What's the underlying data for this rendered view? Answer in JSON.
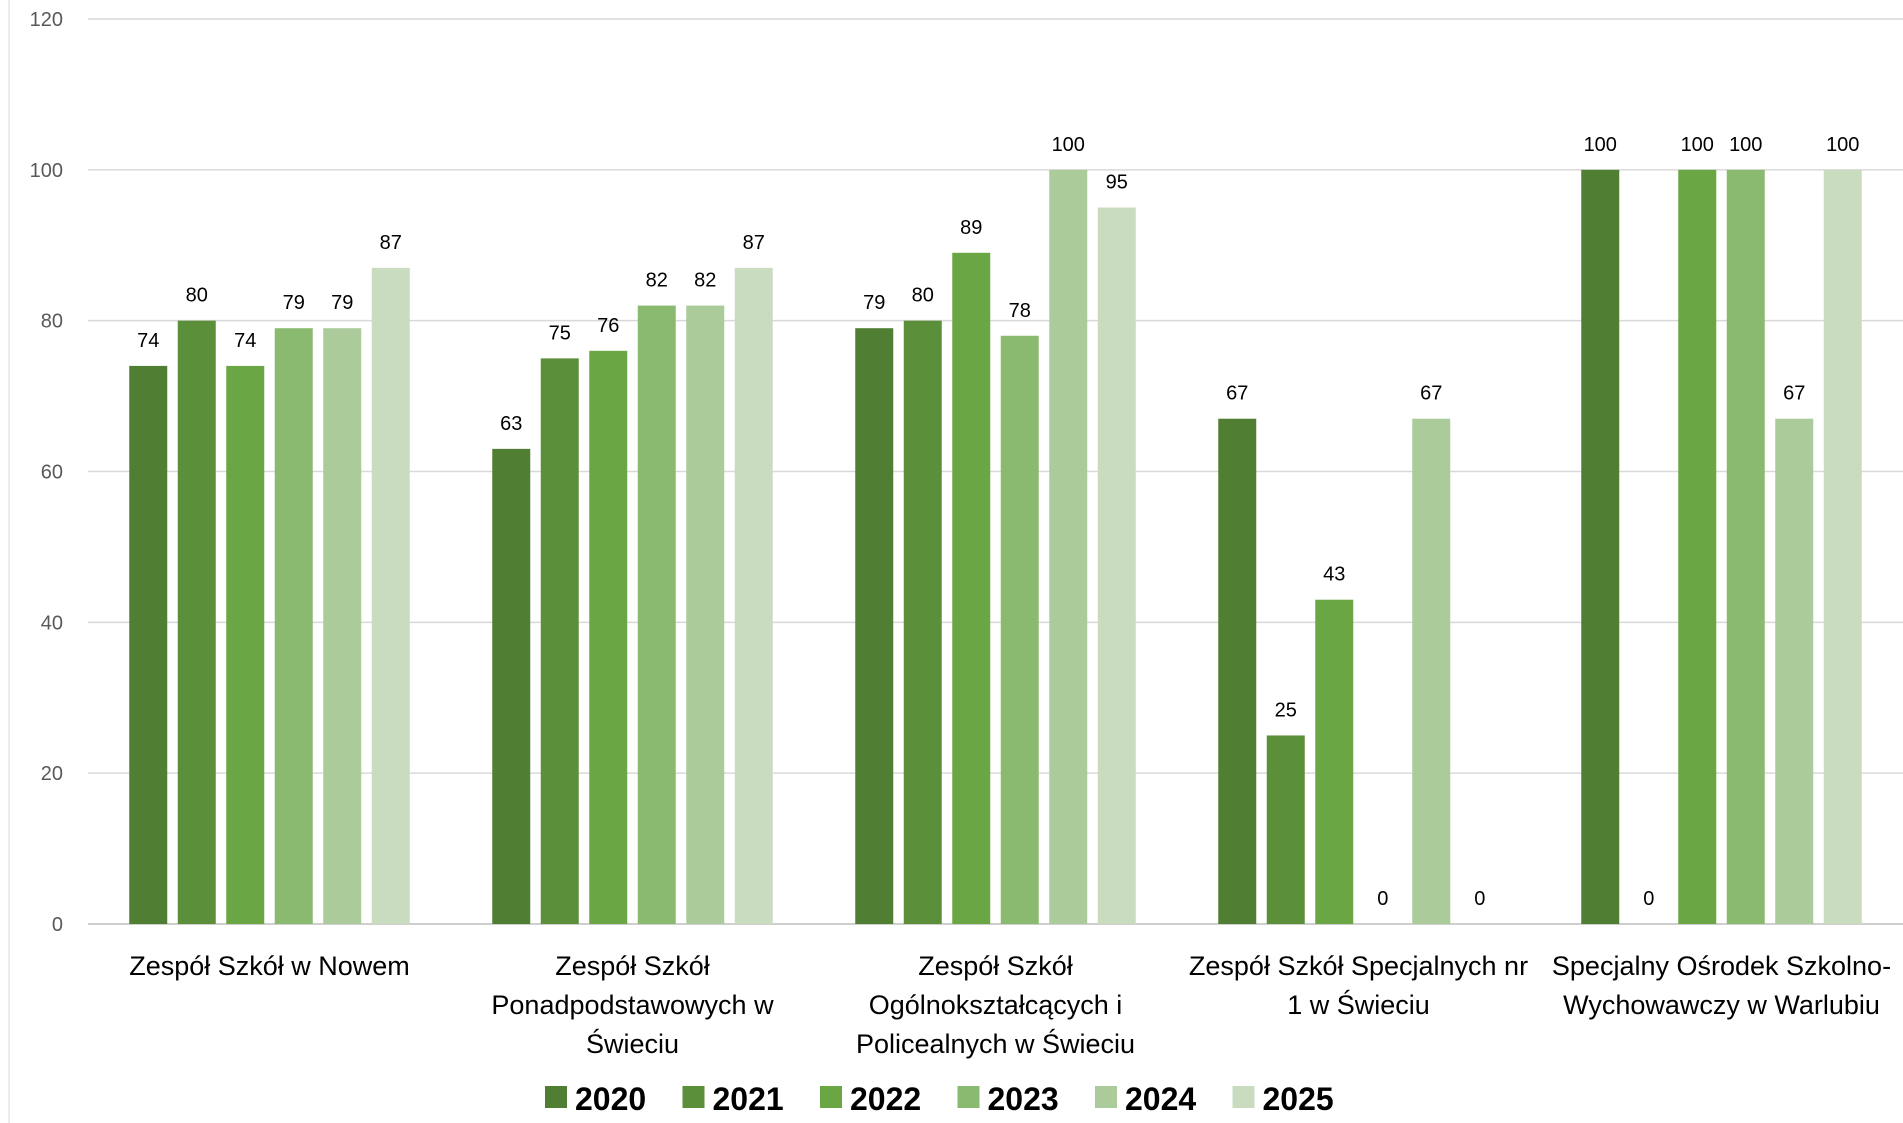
{
  "chart_data": {
    "type": "bar",
    "categories": [
      [
        "Zespół Szkół w Nowem"
      ],
      [
        "Zespół Szkół",
        "Ponadpodstawowych w",
        "Świeciu"
      ],
      [
        "Zespół Szkół",
        "Ogólnokształcących i",
        "Policealnych w Świeciu"
      ],
      [
        "Zespół Szkół Specjalnych nr",
        "1 w Świeciu"
      ],
      [
        "Specjalny Ośrodek Szkolno-",
        "Wychowawczy w Warlubiu"
      ]
    ],
    "series": [
      {
        "name": "2020",
        "color": "#507e32",
        "values": [
          74,
          63,
          79,
          67,
          100
        ]
      },
      {
        "name": "2021",
        "color": "#5b8f3a",
        "values": [
          80,
          75,
          80,
          25,
          0
        ]
      },
      {
        "name": "2022",
        "color": "#6aa744",
        "values": [
          74,
          76,
          89,
          43,
          100
        ]
      },
      {
        "name": "2023",
        "color": "#8aba6f",
        "values": [
          79,
          82,
          78,
          0,
          100
        ]
      },
      {
        "name": "2024",
        "color": "#accb9b",
        "values": [
          79,
          82,
          100,
          67,
          67
        ]
      },
      {
        "name": "2025",
        "color": "#cadcc0",
        "values": [
          87,
          87,
          95,
          0,
          100
        ]
      }
    ],
    "ylim": [
      0,
      120
    ],
    "yticks": [
      0,
      20,
      40,
      60,
      80,
      100,
      120
    ],
    "grid": true,
    "legend": "bottom",
    "title": "",
    "xlabel": "",
    "ylabel": ""
  }
}
